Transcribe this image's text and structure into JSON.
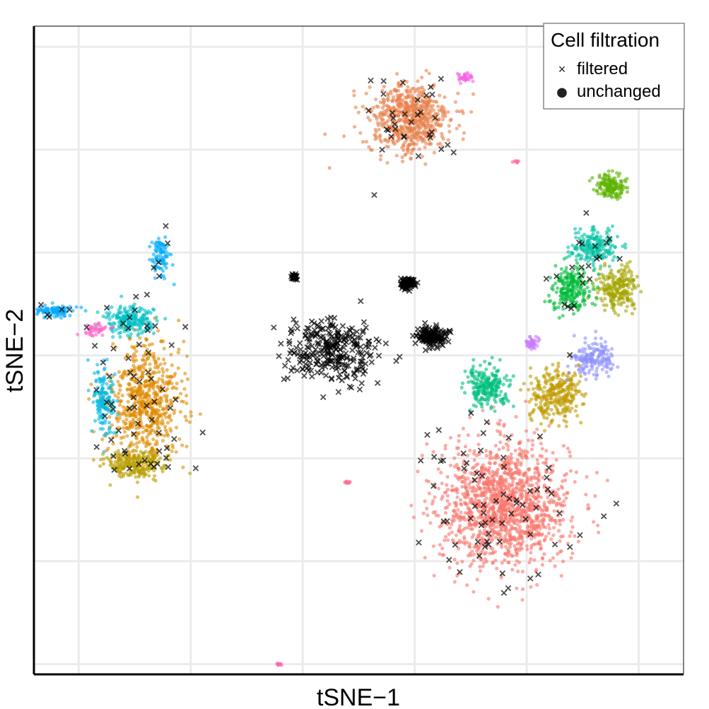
{
  "chart_data": {
    "type": "scatter",
    "title": "",
    "xlabel": "tSNE−1",
    "ylabel": "tSNE−2",
    "xlim": [
      -30,
      28
    ],
    "ylim": [
      -31,
      32
    ],
    "grid": true,
    "axis_ticks_labeled": false,
    "x_gridlines": [
      -26,
      -16,
      -6,
      4,
      14,
      24
    ],
    "y_gridlines": [
      -30,
      -20,
      -10,
      0,
      10,
      20,
      30
    ],
    "legend": {
      "title": "Cell filtration",
      "placement": "top-right",
      "entries": [
        {
          "label": "filtered",
          "marker": "×"
        },
        {
          "label": "unchanged",
          "marker": "●"
        }
      ]
    },
    "clusters": [
      {
        "name": "red",
        "color": "#F8766D",
        "center": [
          12.0,
          -14.5
        ],
        "spread": [
          5.2,
          5.5
        ],
        "n": 1400
      },
      {
        "name": "orange-top",
        "color": "#E7814B",
        "center": [
          3.5,
          23.0
        ],
        "spread": [
          3.3,
          3.1
        ],
        "n": 650
      },
      {
        "name": "orange-left",
        "color": "#E08B00",
        "center": [
          -20.0,
          -4.5
        ],
        "spread": [
          2.8,
          5.2
        ],
        "n": 650
      },
      {
        "name": "olive-left",
        "color": "#B79F00",
        "center": [
          -21.0,
          -10.5
        ],
        "spread": [
          2.4,
          1.3
        ],
        "n": 230
      },
      {
        "name": "olive-right",
        "color": "#C09B00",
        "center": [
          16.5,
          -3.8
        ],
        "spread": [
          2.0,
          2.3
        ],
        "n": 300
      },
      {
        "name": "olive-far-right",
        "color": "#A3A500",
        "center": [
          22.2,
          6.5
        ],
        "spread": [
          1.7,
          1.8
        ],
        "n": 230
      },
      {
        "name": "green-top",
        "color": "#5BB300",
        "center": [
          21.5,
          16.5
        ],
        "spread": [
          1.2,
          1.0
        ],
        "n": 150
      },
      {
        "name": "green-right",
        "color": "#00BA38",
        "center": [
          18.0,
          6.5
        ],
        "spread": [
          1.6,
          1.9
        ],
        "n": 220
      },
      {
        "name": "green-mid",
        "color": "#00BF7D",
        "center": [
          10.5,
          -3.0
        ],
        "spread": [
          1.8,
          1.7
        ],
        "n": 230
      },
      {
        "name": "teal-right",
        "color": "#00C1A3",
        "center": [
          20.0,
          10.5
        ],
        "spread": [
          2.0,
          1.4
        ],
        "n": 200
      },
      {
        "name": "teal-left",
        "color": "#00BFC4",
        "center": [
          -21.5,
          3.5
        ],
        "spread": [
          1.9,
          1.3
        ],
        "n": 200
      },
      {
        "name": "cyan-left",
        "color": "#00B9E3",
        "center": [
          -23.7,
          -4.5
        ],
        "spread": [
          0.9,
          3.0
        ],
        "n": 140
      },
      {
        "name": "sky-top",
        "color": "#00ADFA",
        "center": [
          -18.7,
          9.5
        ],
        "spread": [
          0.7,
          1.8
        ],
        "n": 90
      },
      {
        "name": "sky-arm",
        "color": "#00A9FF",
        "center": [
          -28.2,
          4.3
        ],
        "spread": [
          1.8,
          0.5
        ],
        "n": 90
      },
      {
        "name": "periwinkle",
        "color": "#8F91FF",
        "center": [
          20.0,
          -0.3
        ],
        "spread": [
          1.7,
          1.6
        ],
        "n": 170
      },
      {
        "name": "lavender",
        "color": "#C77CFF",
        "center": [
          14.5,
          1.2
        ],
        "spread": [
          0.5,
          0.6
        ],
        "n": 40
      },
      {
        "name": "pink-arm",
        "color": "#FF61C3",
        "center": [
          -24.5,
          2.5
        ],
        "spread": [
          1.1,
          0.5
        ],
        "n": 40
      },
      {
        "name": "magenta-top",
        "color": "#F564E3",
        "center": [
          8.5,
          27.0
        ],
        "spread": [
          0.6,
          0.4
        ],
        "n": 35
      },
      {
        "name": "pink-small-1",
        "color": "#FF6C91",
        "center": [
          -2.0,
          -12.3
        ],
        "spread": [
          0.3,
          0.12
        ],
        "n": 10
      },
      {
        "name": "pink-small-2",
        "color": "#FF64B0",
        "center": [
          -8.0,
          -30.0
        ],
        "spread": [
          0.3,
          0.15
        ],
        "n": 10
      },
      {
        "name": "pink-small-3",
        "color": "#FF6A98",
        "center": [
          13.0,
          18.8
        ],
        "spread": [
          0.25,
          0.12
        ],
        "n": 8
      }
    ],
    "filtered_clusters": [
      {
        "name": "black-spread",
        "center": [
          -3.5,
          0.5
        ],
        "spread": [
          3.8,
          2.8
        ],
        "n": 280
      },
      {
        "name": "black-dense-1",
        "center": [
          5.5,
          1.8
        ],
        "spread": [
          1.2,
          0.9
        ],
        "n": 150
      },
      {
        "name": "black-dense-2",
        "center": [
          3.3,
          7.0
        ],
        "spread": [
          0.6,
          0.5
        ],
        "n": 90
      },
      {
        "name": "black-dense-3",
        "center": [
          -6.8,
          7.6
        ],
        "spread": [
          0.3,
          0.25
        ],
        "n": 30
      }
    ],
    "filtered_sprinkled_from": [
      "red",
      "orange-top",
      "orange-left",
      "olive-left",
      "teal-left",
      "sky-top",
      "sky-arm",
      "cyan-left",
      "green-right",
      "teal-right"
    ]
  }
}
